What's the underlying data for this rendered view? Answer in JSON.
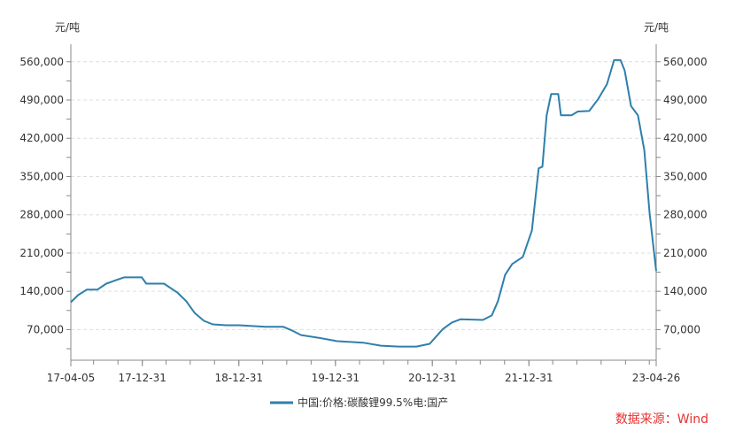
{
  "chart_data": {
    "type": "line",
    "title": "",
    "ylabel_left": "元/吨",
    "ylabel_right": "元/吨",
    "xlabel": "",
    "x_tick_labels": [
      "17-04-05",
      "17-12-31",
      "18-12-31",
      "19-12-31",
      "20-12-31",
      "21-12-31",
      "23-04-26"
    ],
    "x_tick_dates": [
      "2017-04-05",
      "2017-12-31",
      "2018-12-31",
      "2019-12-31",
      "2020-12-31",
      "2021-12-31",
      "2023-04-26"
    ],
    "y_tick_labels": [
      "70,000",
      "140,000",
      "210,000",
      "280,000",
      "350,000",
      "420,000",
      "490,000",
      "560,000"
    ],
    "y_ticks": [
      70000,
      140000,
      210000,
      280000,
      350000,
      420000,
      490000,
      560000
    ],
    "xlim": [
      "2017-04-05",
      "2023-04-26"
    ],
    "ylim": [
      14000,
      592000
    ],
    "grid": "horizontal dashed",
    "legend_position": "bottom",
    "series": [
      {
        "name": "中国:价格:碳酸锂99.5%电:国产",
        "color": "#2e7fab",
        "x": [
          "2017-04-05",
          "2017-05-02",
          "2017-06-04",
          "2017-07-14",
          "2017-08-17",
          "2017-09-26",
          "2017-10-23",
          "2017-12-29",
          "2018-01-15",
          "2018-03-23",
          "2018-05-12",
          "2018-06-15",
          "2018-07-18",
          "2018-08-21",
          "2018-09-23",
          "2018-11-12",
          "2018-12-31",
          "2019-04-11",
          "2019-06-17",
          "2019-07-21",
          "2019-08-23",
          "2019-10-29",
          "2020-01-04",
          "2020-03-11",
          "2020-04-14",
          "2020-06-20",
          "2020-08-26",
          "2020-11-01",
          "2020-12-21",
          "2021-01-14",
          "2021-02-09",
          "2021-03-15",
          "2021-04-17",
          "2021-07-10",
          "2021-08-13",
          "2021-09-05",
          "2021-10-02",
          "2021-10-29",
          "2021-12-08",
          "2022-01-11",
          "2022-02-06",
          "2022-02-20",
          "2022-03-08",
          "2022-03-25",
          "2022-04-21",
          "2022-05-01",
          "2022-06-10",
          "2022-07-04",
          "2022-08-16",
          "2022-09-19",
          "2022-10-22",
          "2022-11-18",
          "2022-12-12",
          "2022-12-28",
          "2023-01-21",
          "2023-02-16",
          "2023-03-12",
          "2023-04-01",
          "2023-04-18",
          "2023-04-26"
        ],
        "y": [
          120000,
          133000,
          143000,
          143000,
          154000,
          161000,
          165500,
          165500,
          154000,
          154000,
          138000,
          122000,
          100000,
          86000,
          79500,
          78000,
          78000,
          75000,
          75000,
          68000,
          60000,
          55000,
          49000,
          47000,
          46000,
          40500,
          39000,
          39000,
          44000,
          57000,
          71000,
          83000,
          89000,
          87600,
          96000,
          122000,
          170000,
          190000,
          203000,
          251000,
          365000,
          368000,
          462000,
          501000,
          501000,
          462000,
          462000,
          469000,
          470000,
          492000,
          519000,
          563000,
          563000,
          544000,
          479000,
          462000,
          398000,
          284000,
          211000,
          177000
        ]
      }
    ]
  },
  "legend": {
    "label": "中国:价格:碳酸锂99.5%电:国产"
  },
  "source": "数据来源：Wind"
}
